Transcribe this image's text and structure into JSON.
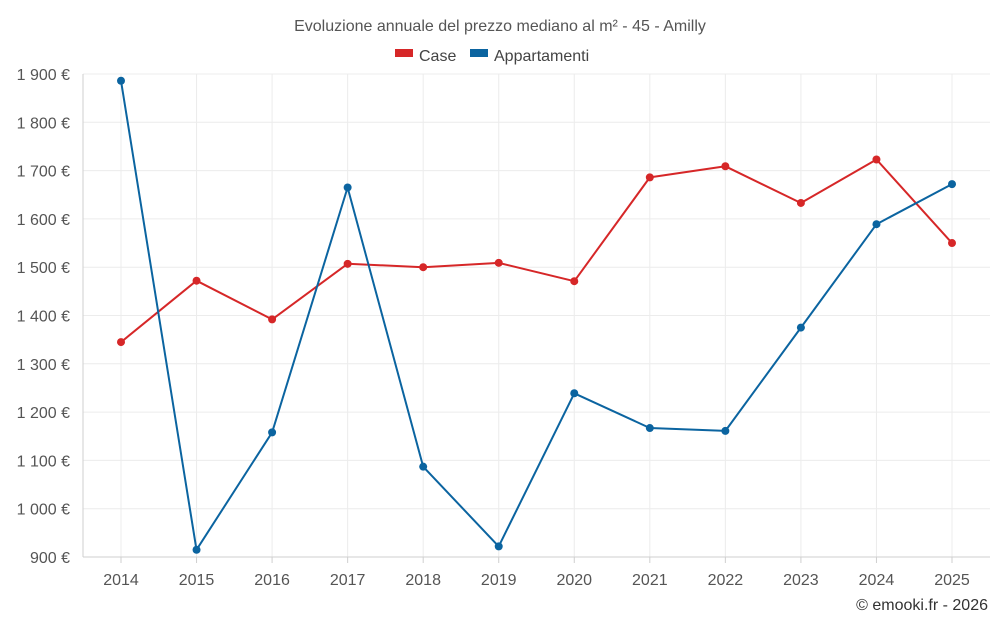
{
  "chart_data": {
    "type": "line",
    "title": "Evoluzione annuale del prezzo mediano al m² - 45 - Amilly",
    "categories": [
      "2014",
      "2015",
      "2016",
      "2017",
      "2018",
      "2019",
      "2020",
      "2021",
      "2022",
      "2023",
      "2024",
      "2025"
    ],
    "series": [
      {
        "name": "Case",
        "color": "#d62728",
        "values": [
          1345,
          1472,
          1392,
          1507,
          1500,
          1509,
          1471,
          1686,
          1709,
          1633,
          1723,
          1550
        ]
      },
      {
        "name": "Appartamenti",
        "color": "#0b64a0",
        "values": [
          1886,
          915,
          1158,
          1665,
          1087,
          922,
          1239,
          1167,
          1161,
          1375,
          1589,
          1672
        ]
      }
    ],
    "ylim": [
      900,
      1900
    ],
    "yticks": [
      900,
      1000,
      1100,
      1200,
      1300,
      1400,
      1500,
      1600,
      1700,
      1800,
      1900
    ],
    "ytick_labels": [
      "900 €",
      "1 000 €",
      "1 100 €",
      "1 200 €",
      "1 300 €",
      "1 400 €",
      "1 500 €",
      "1 600 €",
      "1 700 €",
      "1 800 €",
      "1 900 €"
    ],
    "xlabel": "",
    "ylabel": "",
    "grid": true,
    "legend_position": "top-center"
  },
  "credit": "© emooki.fr - 2026"
}
